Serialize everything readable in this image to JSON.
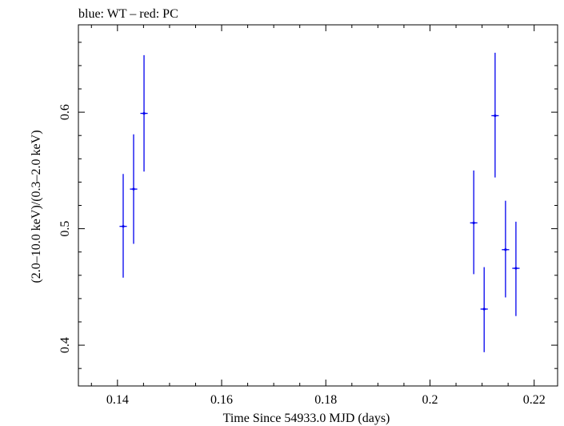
{
  "header_text": "blue: WT – red: PC",
  "chart_data": {
    "type": "scatter",
    "xlabel": "Time Since 54933.0 MJD (days)",
    "ylabel": "(2.0–10.0 keV)/(0.3–2.0 keV)",
    "xlim": [
      0.1325,
      0.2245
    ],
    "ylim": [
      0.365,
      0.675
    ],
    "xticks": [
      0.14,
      0.16,
      0.18,
      0.2,
      0.22
    ],
    "xtick_labels": [
      "0.14",
      "0.16",
      "0.18",
      "0.2",
      "0.22"
    ],
    "yticks": [
      0.4,
      0.5,
      0.6
    ],
    "ytick_labels": [
      "0.4",
      "0.5",
      "0.6"
    ],
    "grid": false,
    "series": [
      {
        "color": "#0000ee",
        "points": [
          {
            "x": 0.1411,
            "y": 0.502,
            "xerr": 0.0007,
            "yerr_low": 0.044,
            "yerr_high": 0.045
          },
          {
            "x": 0.1431,
            "y": 0.534,
            "xerr": 0.0007,
            "yerr_low": 0.047,
            "yerr_high": 0.047
          },
          {
            "x": 0.1451,
            "y": 0.599,
            "xerr": 0.0007,
            "yerr_low": 0.05,
            "yerr_high": 0.05
          },
          {
            "x": 0.2084,
            "y": 0.505,
            "xerr": 0.0007,
            "yerr_low": 0.044,
            "yerr_high": 0.045
          },
          {
            "x": 0.2104,
            "y": 0.431,
            "xerr": 0.0007,
            "yerr_low": 0.037,
            "yerr_high": 0.036
          },
          {
            "x": 0.2125,
            "y": 0.597,
            "xerr": 0.0007,
            "yerr_low": 0.053,
            "yerr_high": 0.054
          },
          {
            "x": 0.2145,
            "y": 0.482,
            "xerr": 0.0007,
            "yerr_low": 0.041,
            "yerr_high": 0.042
          },
          {
            "x": 0.2165,
            "y": 0.466,
            "xerr": 0.0007,
            "yerr_low": 0.041,
            "yerr_high": 0.04
          }
        ]
      }
    ]
  }
}
